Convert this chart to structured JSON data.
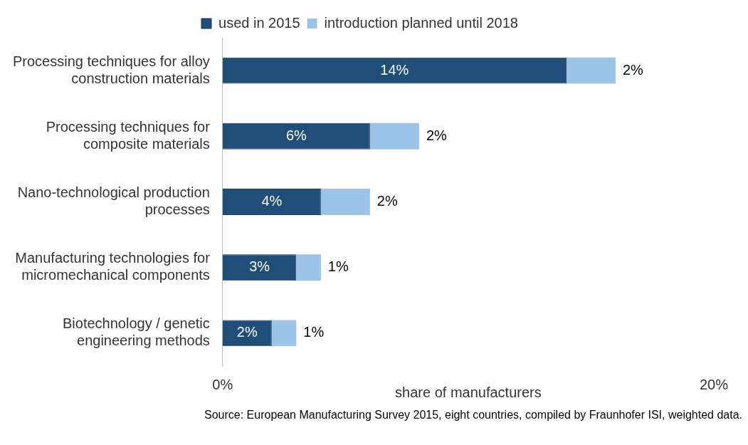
{
  "chart_data": {
    "type": "bar",
    "orientation": "horizontal",
    "stacked": true,
    "categories": [
      "Processing techniques for alloy construction materials",
      "Processing techniques for composite materials",
      "Nano-technological production processes",
      "Manufacturing technologies for micromechanical components",
      "Biotechnology / genetic engineering methods"
    ],
    "series": [
      {
        "name": "used in 2015",
        "color": "#1f4e79",
        "values": [
          14,
          6,
          4,
          3,
          2
        ],
        "value_labels": [
          "14%",
          "6%",
          "4%",
          "3%",
          "2%"
        ]
      },
      {
        "name": "introduction planned until 2018",
        "color": "#9dc3e6",
        "values": [
          2,
          2,
          2,
          1,
          1
        ],
        "value_labels": [
          "2%",
          "2%",
          "2%",
          "1%",
          "1%"
        ]
      }
    ],
    "xlim": [
      0,
      20
    ],
    "xticks": [
      {
        "value": 0,
        "label": "0%"
      },
      {
        "value": 20,
        "label": "20%"
      }
    ],
    "xlabel": "share of manufacturers",
    "legend": "top",
    "grid": false,
    "annotations": [
      "Source: European Manufacturing Survey 2015, eight countries, compiled by Fraunhofer ISI, weighted data."
    ]
  }
}
